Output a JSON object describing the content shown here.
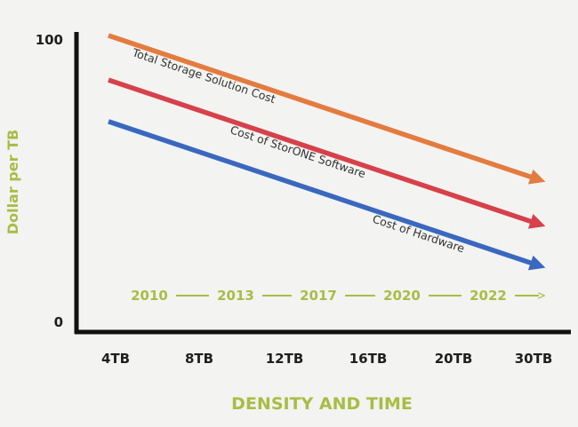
{
  "chart_data": {
    "type": "line",
    "title": "",
    "xlabel": "DENSITY AND TIME",
    "ylabel": "Dollar per TB",
    "categories": [
      "4TB",
      "8TB",
      "12TB",
      "16TB",
      "20TB",
      "30TB"
    ],
    "ylim": [
      0,
      100
    ],
    "yticks": [
      "100",
      "0"
    ],
    "series": [
      {
        "name": "Total Storage Solution Cost",
        "color": "#e47b3f",
        "start": 100,
        "end": 52
      },
      {
        "name": "Cost of StorONE Software",
        "color": "#d7414b",
        "start": 85,
        "end": 37
      },
      {
        "name": "Cost of Hardware",
        "color": "#3a68c0",
        "start": 71,
        "end": 23
      }
    ],
    "timeline": {
      "labels": [
        "2010",
        "2013",
        "2017",
        "2020",
        "2022"
      ],
      "color": "#a8bd45"
    },
    "grid": false,
    "arrowheads": true
  }
}
